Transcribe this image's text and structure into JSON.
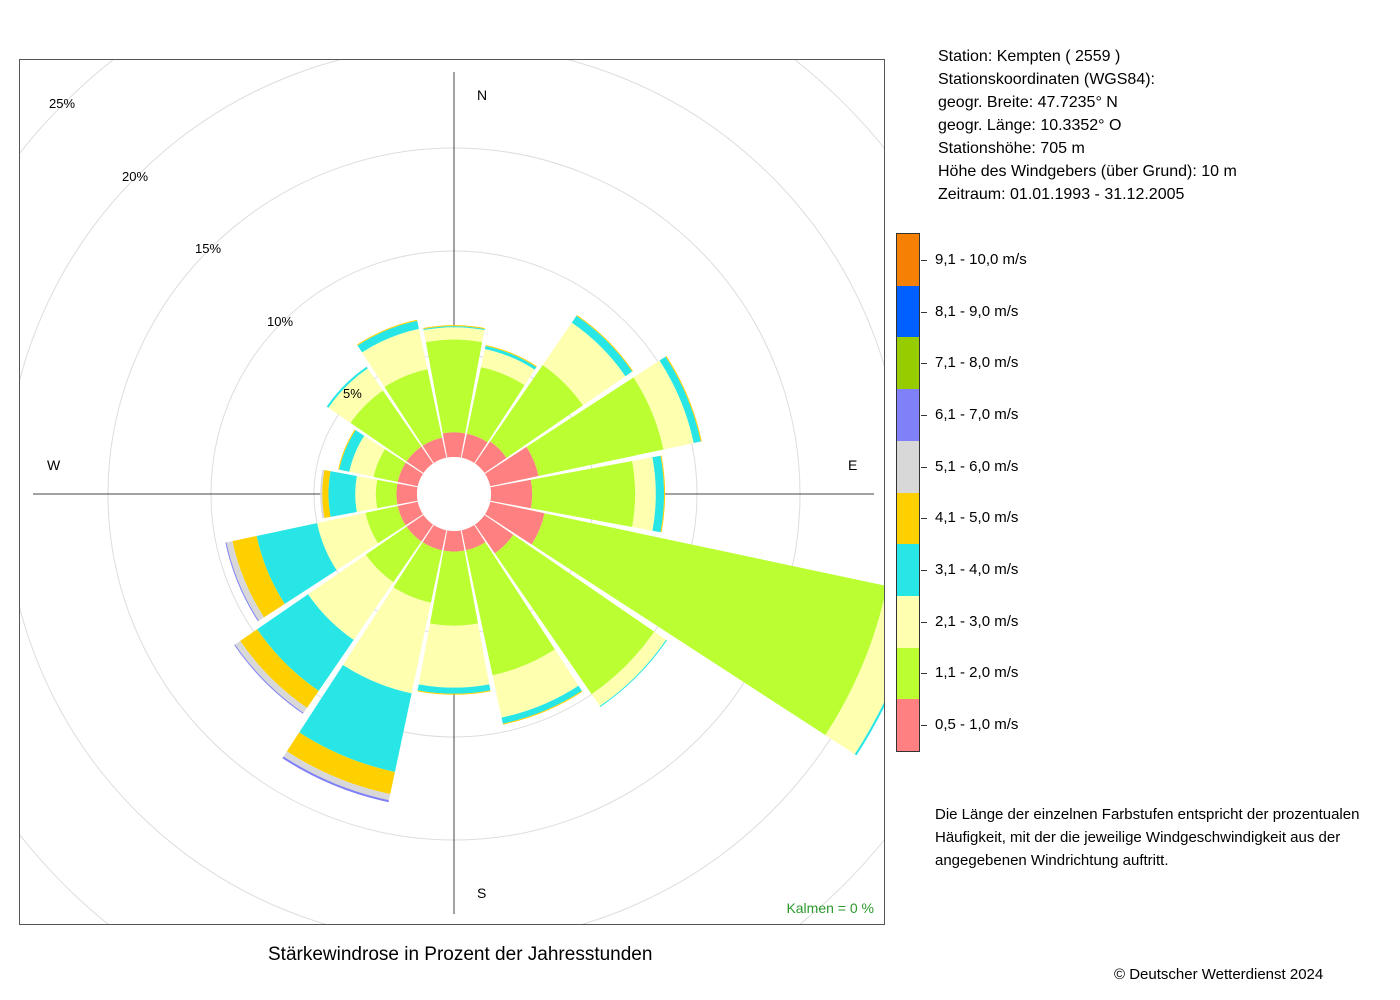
{
  "title": "Stärkewindrose in Prozent der Jahresstunden",
  "station": {
    "line1": "Station:  Kempten  ( 2559 )",
    "line2": "Stationskoordinaten (WGS84):",
    "line3": "geogr. Breite: 47.7235° N",
    "line4": "geogr. Länge: 10.3352° O",
    "line5": "Stationshöhe: 705 m",
    "line6": "Höhe des Windgebers (über Grund): 10 m",
    "line7": "Zeitraum: 01.01.1993 - 31.12.2005"
  },
  "calm": {
    "label": "Kalmen",
    "eq": "=",
    "value": "0 %"
  },
  "note": "Die Länge der einzelnen Farbstufen entspricht der prozentualen Häufigkeit, mit der die jeweilige Windgeschwindigkeit aus der angegebenen Windrichtung auftritt.",
  "copyright": "© Deutscher Wetterdienst  2024",
  "chart_data": {
    "type": "wind-rose",
    "title": "Stärkewindrose in Prozent der Jahresstunden",
    "directions": [
      "N",
      "NNE",
      "NE",
      "ENE",
      "E",
      "ESE",
      "SE",
      "SSE",
      "S",
      "SSW",
      "SW",
      "WSW",
      "W",
      "WNW",
      "NW",
      "NNW"
    ],
    "compass_labels": {
      "n": "N",
      "e": "E",
      "s": "S",
      "w": "W"
    },
    "rings": [
      5,
      10,
      15,
      20,
      25
    ],
    "ring_labels": [
      "5%",
      "10%",
      "15%",
      "20%",
      "25%"
    ],
    "radial_max": 25,
    "grid": true,
    "legend_position": "right",
    "speed_classes": [
      {
        "label": "9,1 - 10,0 m/s",
        "color": "#f58003"
      },
      {
        "label": "8,1 - 9,0 m/s",
        "color": "#0060ff"
      },
      {
        "label": "7,1 - 8,0 m/s",
        "color": "#96cc00"
      },
      {
        "label": "6,1 - 7,0 m/s",
        "color": "#8080f8"
      },
      {
        "label": "5,1 - 6,0 m/s",
        "color": "#d8d8d8"
      },
      {
        "label": "4,1 - 5,0 m/s",
        "color": "#ffd000"
      },
      {
        "label": "3,1 - 4,0 m/s",
        "color": "#28e6e6"
      },
      {
        "label": "2,1 - 3,0 m/s",
        "color": "#ffffb0"
      },
      {
        "label": "1,1 - 2,0 m/s",
        "color": "#bbff33"
      },
      {
        "label": "0,5 - 1,0 m/s",
        "color": "#ff8080"
      }
    ],
    "cumulative_percent": {
      "N": [
        1.2,
        5.7,
        6.3,
        6.35,
        6.4,
        6.4,
        6.4,
        6.4,
        6.4,
        6.4
      ],
      "NNE": [
        1.2,
        4.5,
        5.4,
        5.55,
        5.6,
        5.6,
        5.6,
        5.6,
        5.6,
        5.6
      ],
      "NE": [
        1.3,
        5.8,
        8.3,
        8.7,
        8.75,
        8.75,
        8.75,
        8.75,
        8.75,
        8.75
      ],
      "ENE": [
        2.4,
        8.6,
        10.1,
        10.45,
        10.5,
        10.5,
        10.5,
        10.5,
        10.5,
        10.5
      ],
      "E": [
        2.0,
        7.0,
        8.0,
        8.4,
        8.45,
        8.45,
        8.45,
        8.45,
        8.45,
        8.45
      ],
      "ESE": [
        2.7,
        19.7,
        21.4,
        21.5,
        21.5,
        21.5,
        21.5,
        21.5,
        21.5,
        21.5
      ],
      "SE": [
        1.7,
        10.0,
        10.7,
        10.75,
        10.75,
        10.75,
        10.75,
        10.75,
        10.75,
        10.75
      ],
      "SSE": [
        1.0,
        7.2,
        9.3,
        9.6,
        9.65,
        9.65,
        9.65,
        9.65,
        9.65,
        9.65
      ],
      "S": [
        1.0,
        4.6,
        7.6,
        7.9,
        7.95,
        7.95,
        7.95,
        7.95,
        7.95,
        7.95
      ],
      "SSW": [
        1.0,
        3.6,
        8.1,
        12.0,
        13.1,
        13.4,
        13.5,
        13.5,
        13.5,
        13.5
      ],
      "SW": [
        1.0,
        3.4,
        6.8,
        9.8,
        10.8,
        11.1,
        11.15,
        11.15,
        11.15,
        11.15
      ],
      "WSW": [
        1.0,
        2.6,
        5.0,
        8.0,
        9.2,
        9.5,
        9.55,
        9.55,
        9.55,
        9.55
      ],
      "W": [
        1.0,
        2.0,
        3.0,
        4.3,
        4.6,
        4.7,
        4.7,
        4.7,
        4.7,
        4.7
      ],
      "WNW": [
        1.0,
        2.2,
        3.4,
        3.9,
        3.95,
        3.95,
        3.95,
        3.95,
        3.95,
        3.95
      ],
      "NW": [
        1.0,
        4.3,
        5.6,
        5.7,
        5.7,
        5.7,
        5.7,
        5.7,
        5.7,
        5.7
      ],
      "NNW": [
        1.0,
        4.4,
        6.4,
        6.8,
        6.85,
        6.85,
        6.85,
        6.85,
        6.85,
        6.85
      ]
    },
    "calm_percent": 0
  }
}
